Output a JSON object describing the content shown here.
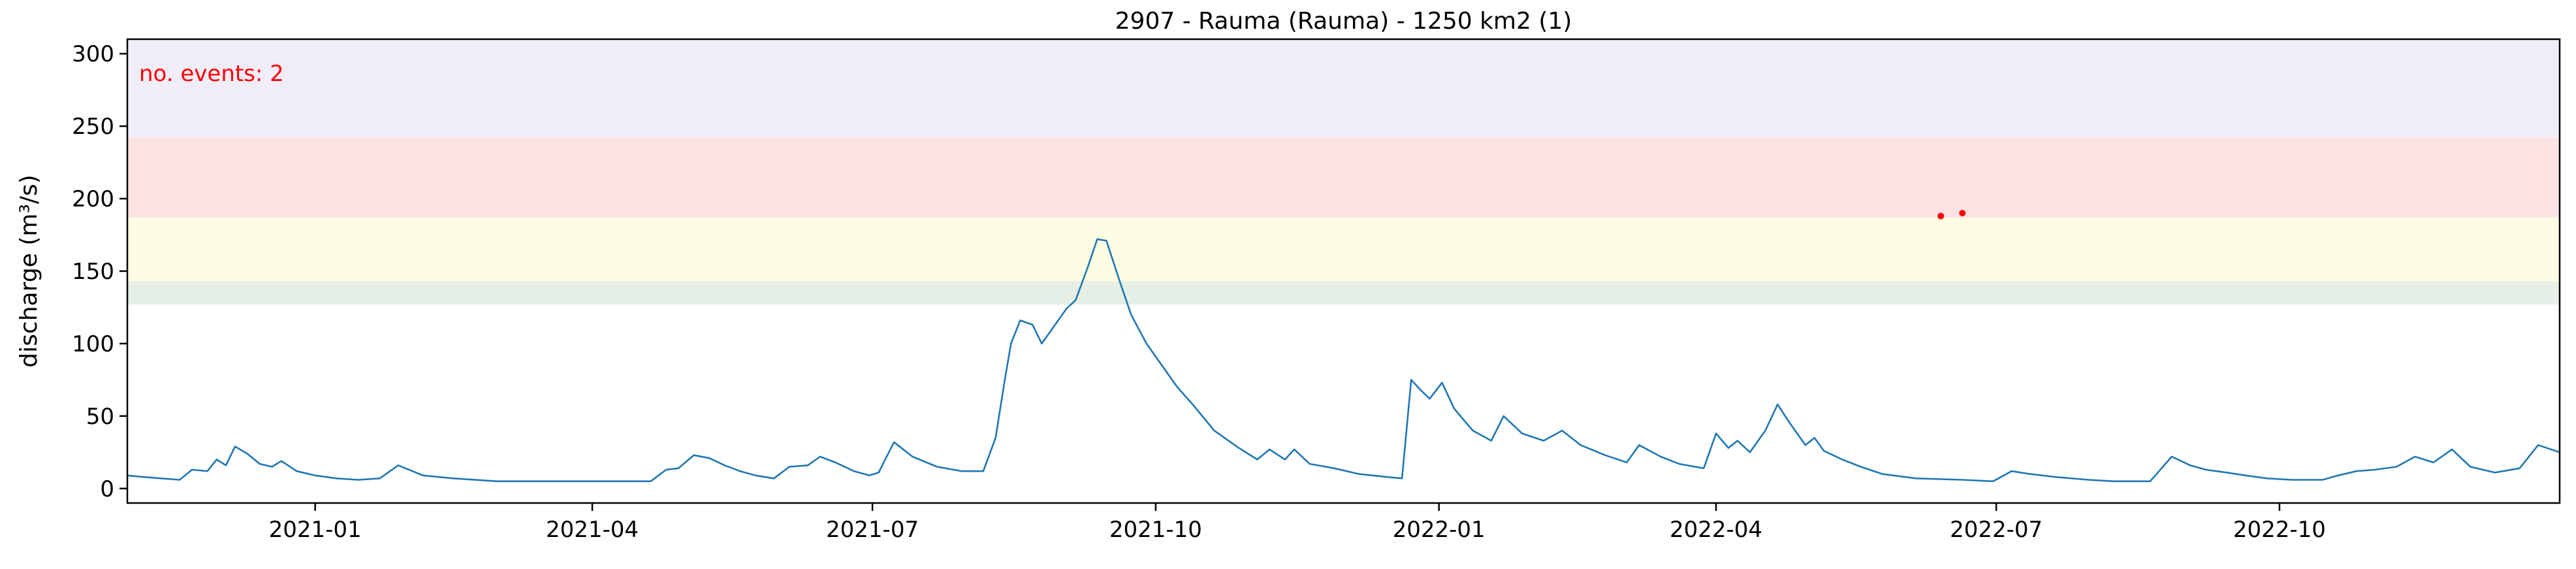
{
  "chart_data": {
    "type": "line",
    "title": "2907 - Rauma (Rauma) - 1250 km2 (1)",
    "xlabel": "",
    "ylabel": "discharge (m³/s)",
    "xlim": [
      "2020-11-01",
      "2022-12-31"
    ],
    "ylim": [
      -10,
      310
    ],
    "yticks": [
      0,
      50,
      100,
      150,
      200,
      250,
      300
    ],
    "xticks": [
      {
        "date": "2021-01-01",
        "label": "2021-01"
      },
      {
        "date": "2021-04-01",
        "label": "2021-04"
      },
      {
        "date": "2021-07-01",
        "label": "2021-07"
      },
      {
        "date": "2021-10-01",
        "label": "2021-10"
      },
      {
        "date": "2022-01-01",
        "label": "2022-01"
      },
      {
        "date": "2022-04-01",
        "label": "2022-04"
      },
      {
        "date": "2022-07-01",
        "label": "2022-07"
      },
      {
        "date": "2022-10-01",
        "label": "2022-10"
      }
    ],
    "threshold_bands": [
      {
        "from": 127,
        "to": 143,
        "color": "#e5efe5"
      },
      {
        "from": 143,
        "to": 187,
        "color": "#fdfde3"
      },
      {
        "from": 187,
        "to": 242,
        "color": "#fde2e4"
      },
      {
        "from": 242,
        "to": 310,
        "color": "#f1eef9"
      }
    ],
    "series": [
      {
        "name": "discharge",
        "color": "#1f77b4",
        "points": [
          [
            "2020-11-01",
            9
          ],
          [
            "2020-11-06",
            8
          ],
          [
            "2020-11-12",
            7
          ],
          [
            "2020-11-18",
            6
          ],
          [
            "2020-11-22",
            13
          ],
          [
            "2020-11-27",
            12
          ],
          [
            "2020-11-30",
            20
          ],
          [
            "2020-12-03",
            16
          ],
          [
            "2020-12-06",
            29
          ],
          [
            "2020-12-10",
            24
          ],
          [
            "2020-12-14",
            17
          ],
          [
            "2020-12-18",
            15
          ],
          [
            "2020-12-21",
            19
          ],
          [
            "2020-12-26",
            12
          ],
          [
            "2021-01-01",
            9
          ],
          [
            "2021-01-08",
            7
          ],
          [
            "2021-01-15",
            6
          ],
          [
            "2021-01-22",
            7
          ],
          [
            "2021-01-28",
            16
          ],
          [
            "2021-02-05",
            9
          ],
          [
            "2021-02-15",
            7
          ],
          [
            "2021-03-01",
            5
          ],
          [
            "2021-03-20",
            5
          ],
          [
            "2021-04-10",
            5
          ],
          [
            "2021-04-20",
            5
          ],
          [
            "2021-04-25",
            13
          ],
          [
            "2021-04-29",
            14
          ],
          [
            "2021-05-04",
            23
          ],
          [
            "2021-05-09",
            21
          ],
          [
            "2021-05-14",
            16
          ],
          [
            "2021-05-19",
            12
          ],
          [
            "2021-05-24",
            9
          ],
          [
            "2021-05-30",
            7
          ],
          [
            "2021-06-04",
            15
          ],
          [
            "2021-06-10",
            16
          ],
          [
            "2021-06-14",
            22
          ],
          [
            "2021-06-19",
            18
          ],
          [
            "2021-06-25",
            12
          ],
          [
            "2021-06-30",
            9
          ],
          [
            "2021-07-03",
            11
          ],
          [
            "2021-07-08",
            32
          ],
          [
            "2021-07-14",
            22
          ],
          [
            "2021-07-22",
            15
          ],
          [
            "2021-07-30",
            12
          ],
          [
            "2021-08-06",
            12
          ],
          [
            "2021-08-10",
            35
          ],
          [
            "2021-08-13",
            75
          ],
          [
            "2021-08-15",
            100
          ],
          [
            "2021-08-18",
            116
          ],
          [
            "2021-08-22",
            113
          ],
          [
            "2021-08-25",
            100
          ],
          [
            "2021-08-29",
            112
          ],
          [
            "2021-09-02",
            124
          ],
          [
            "2021-09-05",
            130
          ],
          [
            "2021-09-09",
            153
          ],
          [
            "2021-09-12",
            172
          ],
          [
            "2021-09-15",
            171
          ],
          [
            "2021-09-19",
            145
          ],
          [
            "2021-09-23",
            120
          ],
          [
            "2021-09-28",
            100
          ],
          [
            "2021-10-03",
            85
          ],
          [
            "2021-10-08",
            70
          ],
          [
            "2021-10-13",
            58
          ],
          [
            "2021-10-20",
            40
          ],
          [
            "2021-10-28",
            28
          ],
          [
            "2021-11-03",
            20
          ],
          [
            "2021-11-07",
            27
          ],
          [
            "2021-11-12",
            20
          ],
          [
            "2021-11-15",
            27
          ],
          [
            "2021-11-20",
            17
          ],
          [
            "2021-11-28",
            14
          ],
          [
            "2021-12-06",
            10
          ],
          [
            "2021-12-15",
            8
          ],
          [
            "2021-12-20",
            7
          ],
          [
            "2021-12-23",
            75
          ],
          [
            "2021-12-26",
            68
          ],
          [
            "2021-12-29",
            62
          ],
          [
            "2022-01-02",
            73
          ],
          [
            "2022-01-06",
            55
          ],
          [
            "2022-01-12",
            40
          ],
          [
            "2022-01-18",
            33
          ],
          [
            "2022-01-22",
            50
          ],
          [
            "2022-01-28",
            38
          ],
          [
            "2022-02-04",
            33
          ],
          [
            "2022-02-10",
            40
          ],
          [
            "2022-02-16",
            30
          ],
          [
            "2022-02-24",
            23
          ],
          [
            "2022-03-03",
            18
          ],
          [
            "2022-03-07",
            30
          ],
          [
            "2022-03-14",
            22
          ],
          [
            "2022-03-20",
            17
          ],
          [
            "2022-03-28",
            14
          ],
          [
            "2022-04-01",
            38
          ],
          [
            "2022-04-05",
            28
          ],
          [
            "2022-04-08",
            33
          ],
          [
            "2022-04-12",
            25
          ],
          [
            "2022-04-17",
            40
          ],
          [
            "2022-04-21",
            58
          ],
          [
            "2022-04-25",
            45
          ],
          [
            "2022-04-30",
            30
          ],
          [
            "2022-05-03",
            35
          ],
          [
            "2022-05-06",
            26
          ],
          [
            "2022-05-12",
            20
          ],
          [
            "2022-05-18",
            15
          ],
          [
            "2022-05-25",
            10
          ],
          [
            "2022-06-05",
            7
          ],
          [
            "2022-06-20",
            6
          ],
          [
            "2022-06-30",
            5
          ],
          [
            "2022-07-06",
            12
          ],
          [
            "2022-07-12",
            10
          ],
          [
            "2022-07-20",
            8
          ],
          [
            "2022-07-31",
            6
          ],
          [
            "2022-08-08",
            5
          ],
          [
            "2022-08-20",
            5
          ],
          [
            "2022-08-27",
            22
          ],
          [
            "2022-09-02",
            16
          ],
          [
            "2022-09-07",
            13
          ],
          [
            "2022-09-14",
            11
          ],
          [
            "2022-09-20",
            9
          ],
          [
            "2022-09-27",
            7
          ],
          [
            "2022-10-05",
            6
          ],
          [
            "2022-10-15",
            6
          ],
          [
            "2022-10-20",
            9
          ],
          [
            "2022-10-26",
            12
          ],
          [
            "2022-11-01",
            13
          ],
          [
            "2022-11-08",
            15
          ],
          [
            "2022-11-14",
            22
          ],
          [
            "2022-11-20",
            18
          ],
          [
            "2022-11-26",
            27
          ],
          [
            "2022-12-02",
            15
          ],
          [
            "2022-12-10",
            11
          ],
          [
            "2022-12-18",
            14
          ],
          [
            "2022-12-24",
            30
          ],
          [
            "2022-12-31",
            25
          ]
        ]
      }
    ],
    "events": [
      {
        "date": "2022-06-13",
        "value": 188
      },
      {
        "date": "2022-06-20",
        "value": 190
      }
    ],
    "annotation": {
      "text": "no. events: 2",
      "color": "#ff0000",
      "position": "top-left"
    }
  }
}
